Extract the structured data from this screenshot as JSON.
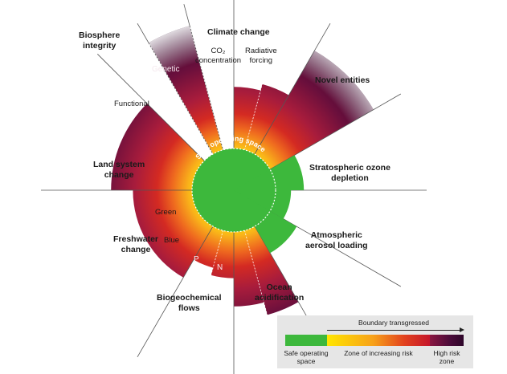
{
  "labels": {
    "climate_change": "Climate change",
    "co2": "CO₂\nconcentration",
    "radiative": "Radiative\nforcing",
    "novel_entities": "Novel entities",
    "stratospheric": "Stratospheric ozone\ndepletion",
    "aerosol": "Atmospheric\naerosol loading",
    "ocean": "Ocean\nacidification",
    "biogeochemical": "Biogeochemical\nflows",
    "freshwater": "Freshwater\nchange",
    "land_system": "Land system\nchange",
    "biosphere": "Biosphere\nintegrity",
    "functional": "Functional",
    "genetic": "Genetic",
    "green": "Green",
    "blue": "Blue",
    "p": "P",
    "n": "N",
    "safe_operating_space": "Safe operating space"
  },
  "legend": {
    "transgressed": "Boundary transgressed",
    "safe": "Safe operating\nspace",
    "increasing": "Zone of increasing risk",
    "high": "High risk\nzone"
  },
  "colors": {
    "safe": "#3db83c",
    "yellow": "#ffe600",
    "orange": "#f7a11a",
    "red": "#d42a22",
    "crimson": "#a81c3c",
    "high_risk": "#2d0629"
  },
  "wedges": [
    {
      "id": "co2",
      "status": "high risk",
      "extent": 0.48
    },
    {
      "id": "radiative",
      "status": "high risk",
      "extent": 0.53
    },
    {
      "id": "novel-entities",
      "status": "high risk",
      "extent": 0.93
    },
    {
      "id": "ozone",
      "status": "safe",
      "extent": 0.22
    },
    {
      "id": "aerosol",
      "status": "safe",
      "extent": 0.12
    },
    {
      "id": "ocean",
      "status": "safe",
      "extent": 0.24
    },
    {
      "id": "nitrogen",
      "status": "high risk",
      "extent": 0.68
    },
    {
      "id": "phosphorus",
      "status": "high risk",
      "extent": 0.58
    },
    {
      "id": "blue-water",
      "status": "increasing risk",
      "extent": 0.36
    },
    {
      "id": "green-water",
      "status": "increasing risk",
      "extent": 0.3
    },
    {
      "id": "land-system",
      "status": "increasing risk",
      "extent": 0.46
    },
    {
      "id": "functional",
      "status": "high risk",
      "extent": 0.63
    },
    {
      "id": "genetic",
      "status": "high risk",
      "extent": 1.0
    }
  ]
}
